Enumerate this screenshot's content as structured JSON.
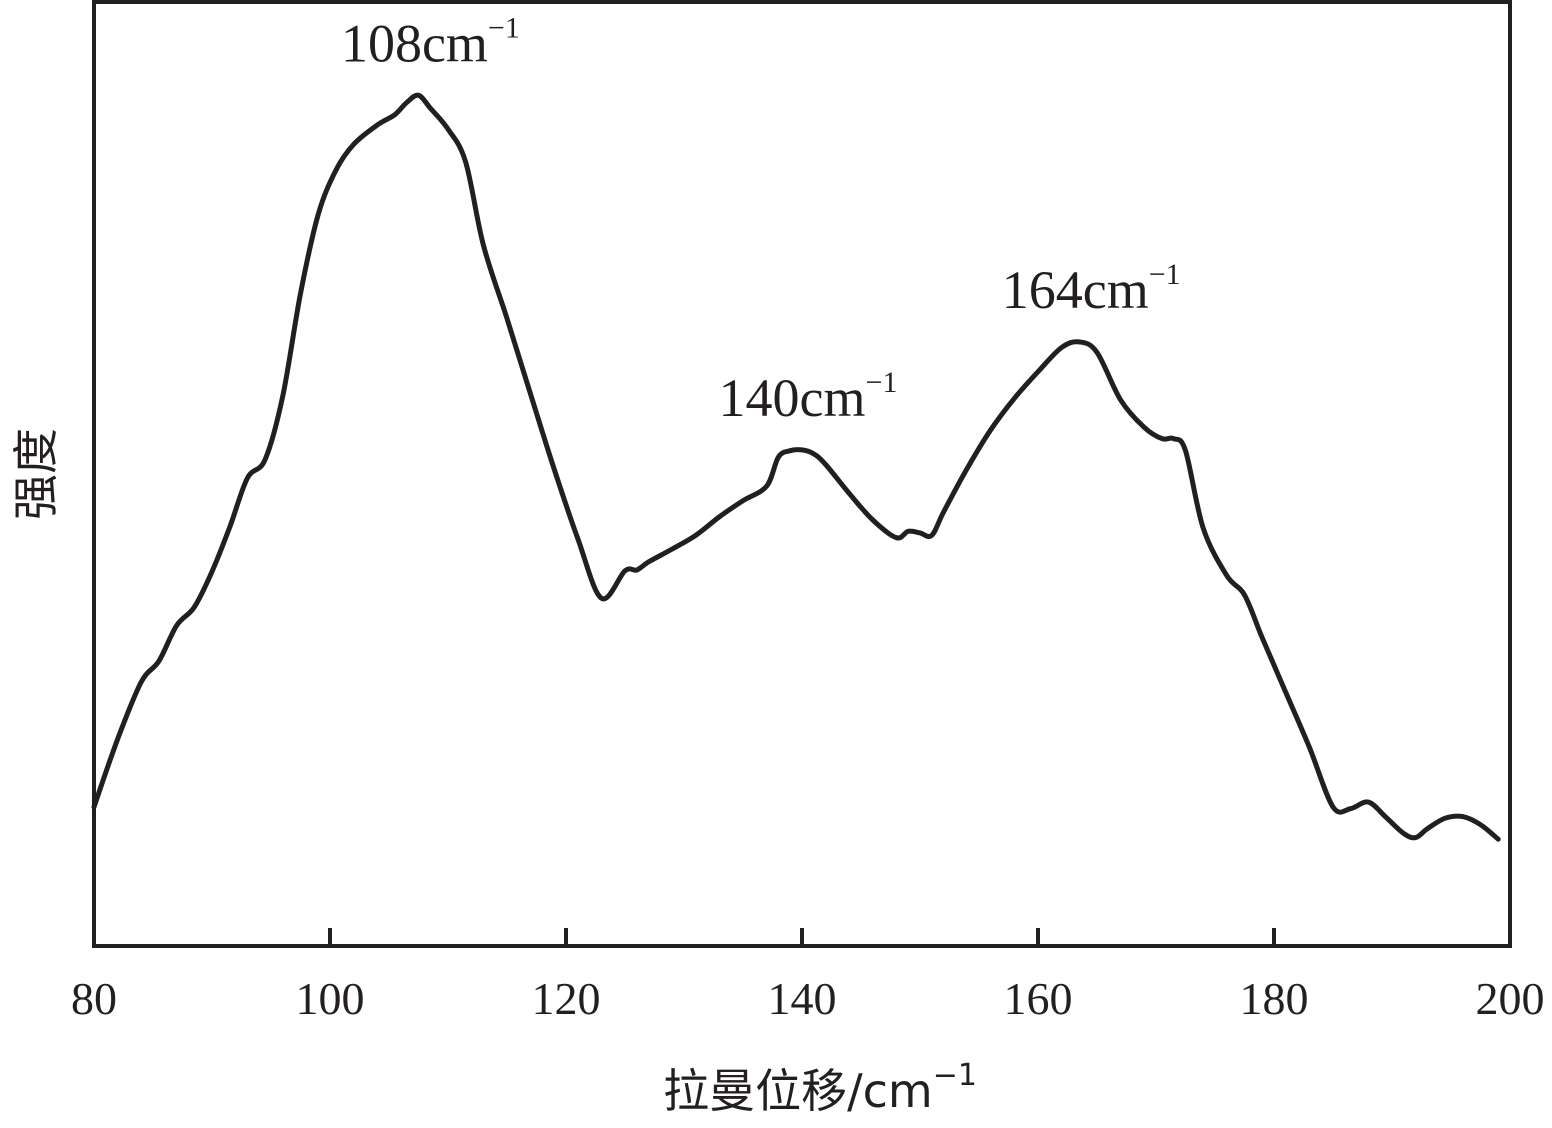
{
  "chart_data": {
    "type": "line",
    "xlabel": "拉曼位移/cm",
    "xlabel_sup": "−1",
    "ylabel": "强度",
    "xlim": [
      80,
      200
    ],
    "ylim": [
      0,
      100
    ],
    "grid": false,
    "y_ticks_shown": false,
    "x_ticks": [
      "80",
      "100",
      "120",
      "140",
      "160",
      "180",
      "200"
    ],
    "series": [
      {
        "color": "#231f20",
        "x": [
          80,
          82,
          84,
          85.5,
          87,
          88.5,
          90,
          91.5,
          93,
          94.5,
          96,
          97.5,
          99,
          100.5,
          102,
          104,
          105.5,
          106.5,
          107.5,
          108.5,
          110,
          111.5,
          113,
          115,
          117,
          119,
          121,
          123,
          125,
          126,
          127,
          129,
          131,
          133,
          135,
          137,
          138,
          139,
          140,
          141,
          142,
          144,
          146,
          148,
          149,
          150,
          151,
          152,
          154,
          156,
          158,
          160,
          162,
          163.5,
          165,
          167,
          169,
          170.5,
          171.5,
          172.5,
          174,
          176,
          177.5,
          179,
          181,
          183,
          185,
          186.5,
          188,
          189.5,
          191,
          192,
          193,
          194.5,
          196,
          197.5,
          199
        ],
        "y": [
          10.8,
          19.2,
          26.3,
          28.9,
          33.3,
          35.6,
          40.0,
          45.5,
          51.6,
          53.9,
          61.8,
          74.5,
          84.3,
          89.8,
          93.0,
          95.4,
          96.7,
          98.2,
          99.1,
          97.5,
          94.9,
          90.8,
          80.5,
          71.4,
          62.0,
          52.7,
          44.1,
          36.7,
          40.1,
          40.2,
          41.2,
          42.8,
          44.5,
          46.8,
          48.8,
          50.6,
          54.2,
          55.0,
          55.1,
          54.6,
          53.3,
          49.7,
          46.4,
          44.2,
          45.0,
          44.8,
          44.5,
          47.4,
          52.8,
          57.6,
          61.5,
          64.8,
          67.8,
          68.5,
          67.2,
          61.3,
          57.9,
          56.5,
          56.5,
          55.0,
          45.4,
          39.5,
          37.1,
          31.8,
          25.0,
          18.2,
          10.8,
          10.6,
          11.4,
          9.5,
          7.5,
          7.0,
          8.1,
          9.4,
          9.6,
          8.6,
          6.8
        ]
      }
    ],
    "annotations": [
      {
        "text": "108cm",
        "sup": "−1",
        "x": 108,
        "y": 99.1
      },
      {
        "text": "140cm",
        "sup": "−1",
        "x": 140,
        "y": 55.1
      },
      {
        "text": "164cm",
        "sup": "−1",
        "x": 164,
        "y": 68.5
      }
    ]
  }
}
